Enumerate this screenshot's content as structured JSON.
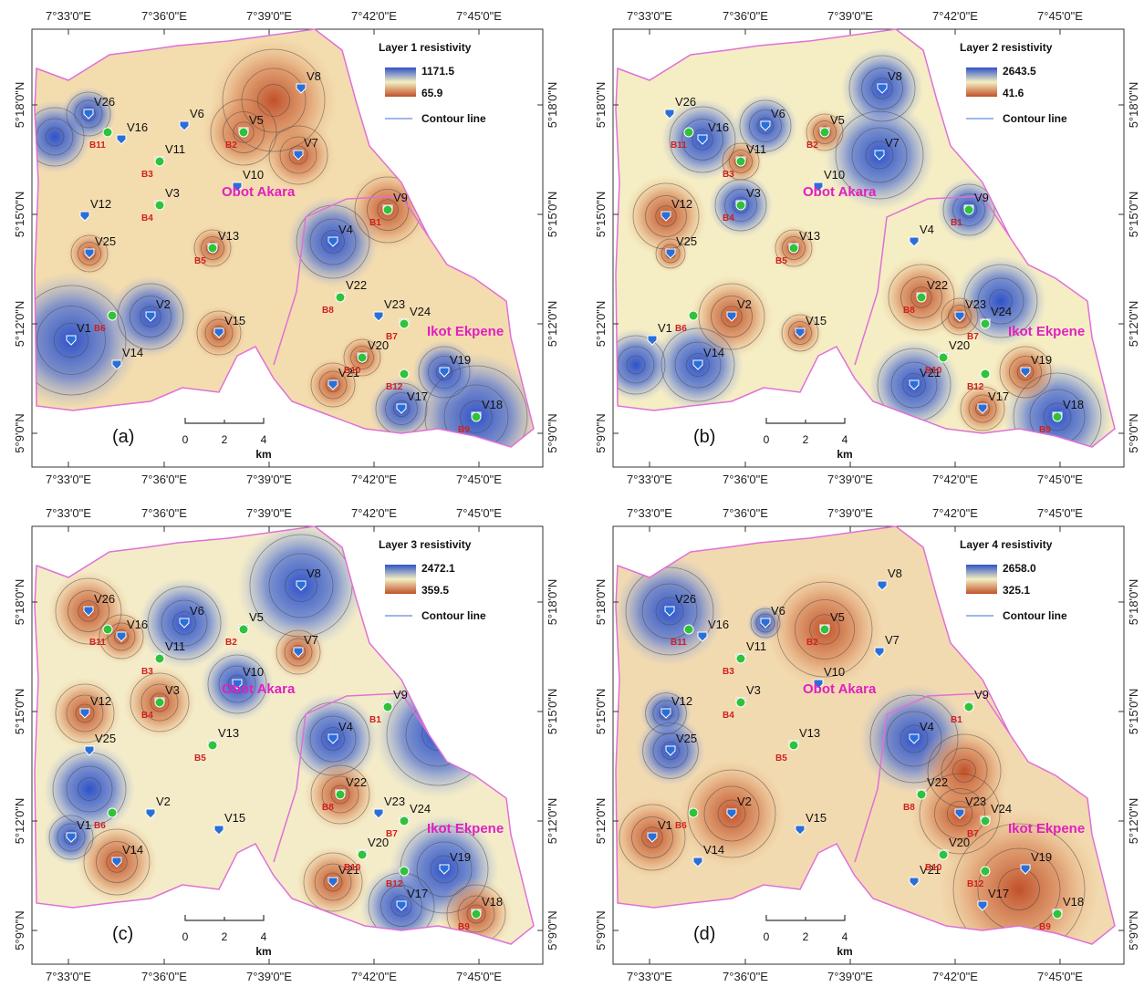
{
  "x_tick_labels": [
    "7°33'0\"E",
    "7°36'0\"E",
    "7°39'0\"E",
    "7°42'0\"E",
    "7°45'0\"E"
  ],
  "y_tick_labels": [
    "5°18'0\"N",
    "5°15'0\"N",
    "5°12'0\"N",
    "5°9'0\"N"
  ],
  "stations": [
    "V1",
    "V2",
    "V3",
    "V4",
    "V5",
    "V6",
    "V7",
    "V8",
    "V9",
    "V10",
    "V11",
    "V12",
    "V13",
    "V14",
    "V15",
    "V16",
    "V17",
    "V18",
    "V19",
    "V20",
    "V21",
    "V22",
    "V23",
    "V24",
    "V25",
    "V26"
  ],
  "boreholes": [
    "B1",
    "B2",
    "B3",
    "B4",
    "B5",
    "B6",
    "B7",
    "B8",
    "B9",
    "B10",
    "B11",
    "B12"
  ],
  "towns": [
    "Obot Akara",
    "Ikot Ekpene"
  ],
  "scale_bar": {
    "ticks": [
      "0",
      "2",
      "4"
    ],
    "unit": "km"
  },
  "legend_contour": "Contour line",
  "panels": [
    {
      "label": "(a)",
      "title": "Layer 1 resistivity",
      "legend_max": "1171.5",
      "legend_min": "65.9"
    },
    {
      "label": "(b)",
      "title": "Layer 2 resistivity",
      "legend_max": "2643.5",
      "legend_min": "41.6"
    },
    {
      "label": "(c)",
      "title": "Layer 3 resistivity",
      "legend_max": "2472.1",
      "legend_min": "359.5"
    },
    {
      "label": "(d)",
      "title": "Layer 4 resistivity",
      "legend_max": "2658.0",
      "legend_min": "325.1"
    }
  ]
}
